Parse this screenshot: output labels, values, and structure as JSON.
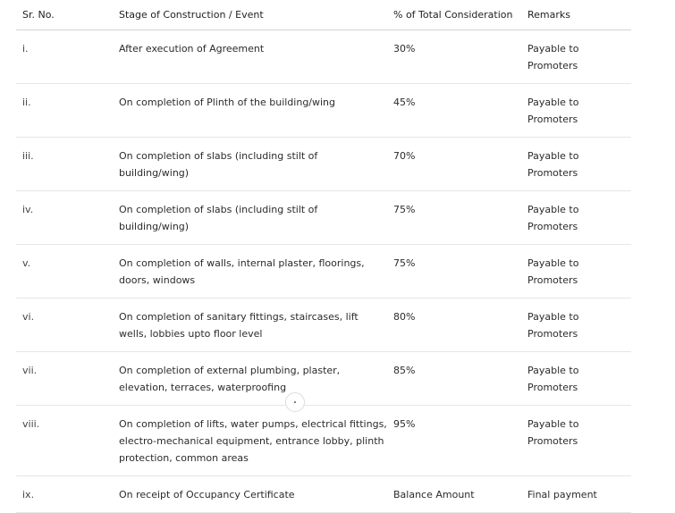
{
  "table": {
    "headers": {
      "sr": "Sr. No.",
      "stage": "Stage of Construction / Event",
      "percent": "% of Total Consideration",
      "remarks": "Remarks"
    },
    "rows": [
      {
        "sr": "i.",
        "stage": "After execution of Agreement",
        "percent": "30%",
        "remarks": "Payable to Promoters"
      },
      {
        "sr": "ii.",
        "stage": "On completion of Plinth of the building/wing",
        "percent": "45%",
        "remarks": "Payable to Promoters"
      },
      {
        "sr": "iii.",
        "stage": "On completion of slabs (including stilt of building/wing)",
        "percent": "70%",
        "remarks": "Payable to Promoters"
      },
      {
        "sr": "iv.",
        "stage": "On completion of slabs (including stilt of building/wing)",
        "percent": "75%",
        "remarks": "Payable to Promoters"
      },
      {
        "sr": "v.",
        "stage": "On completion of walls, internal plaster, floorings, doors, windows",
        "percent": "75%",
        "remarks": "Payable to Promoters"
      },
      {
        "sr": "vi.",
        "stage": "On completion of sanitary fittings, staircases, lift wells, lobbies upto floor level",
        "percent": "80%",
        "remarks": "Payable to Promoters"
      },
      {
        "sr": "vii.",
        "stage": "On completion of external plumbing, plaster, elevation, terraces, waterproofing",
        "percent": "85%",
        "remarks": "Payable to Promoters"
      },
      {
        "sr": "viii.",
        "stage": "On completion of lifts, water pumps, electrical fittings, electro-mechanical equipment, entrance lobby, plinth protection, common areas",
        "percent": "95%",
        "remarks": "Payable to Promoters"
      },
      {
        "sr": "ix.",
        "stage": "On receipt of Occupancy Certificate",
        "percent": "Balance Amount",
        "remarks": "Final payment"
      }
    ]
  }
}
